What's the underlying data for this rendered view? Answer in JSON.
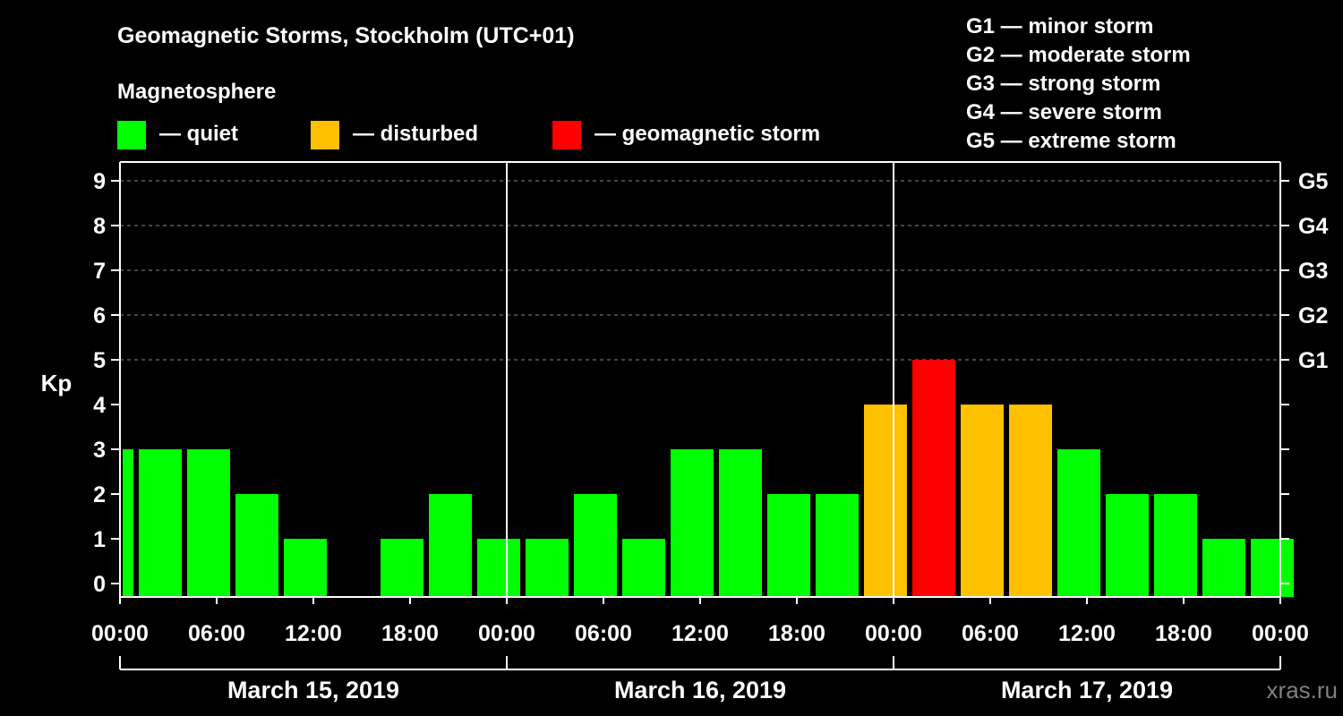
{
  "chart_data": {
    "type": "bar",
    "title": "Geomagnetic Storms, Stockholm (UTC+01)",
    "legend_title": "Magnetosphere",
    "legend": [
      {
        "key": "quiet",
        "label": "— quiet",
        "color": "#00ff00"
      },
      {
        "key": "disturbed",
        "label": "— disturbed",
        "color": "#ffc000"
      },
      {
        "key": "storm",
        "label": "— geomagnetic storm",
        "color": "#ff0000"
      }
    ],
    "storm_scale": [
      "G1 — minor storm",
      "G2 — moderate storm",
      "G3 — strong storm",
      "G4 — severe storm",
      "G5 — extreme storm"
    ],
    "ylabel": "Kp",
    "ylim": [
      0,
      9
    ],
    "yticks": [
      "0",
      "1",
      "2",
      "3",
      "4",
      "5",
      "6",
      "7",
      "8",
      "9"
    ],
    "right_ticks": [
      {
        "kp": 5,
        "label": "G1"
      },
      {
        "kp": 6,
        "label": "G2"
      },
      {
        "kp": 7,
        "label": "G3"
      },
      {
        "kp": 8,
        "label": "G4"
      },
      {
        "kp": 9,
        "label": "G5"
      }
    ],
    "x_tick_labels": [
      "00:00",
      "06:00",
      "12:00",
      "18:00",
      "00:00",
      "06:00",
      "12:00",
      "18:00",
      "00:00",
      "06:00",
      "12:00",
      "18:00",
      "00:00"
    ],
    "days": [
      "March 15, 2019",
      "March 16, 2019",
      "March 17, 2019"
    ],
    "hours_shown": 72,
    "first_bar_start_hour": -2,
    "bar_interval_hours": 3,
    "values": [
      3,
      3,
      3,
      2,
      1,
      0,
      1,
      2,
      1,
      1,
      2,
      1,
      3,
      3,
      2,
      2,
      4,
      5,
      4,
      4,
      3,
      2,
      2,
      1,
      1
    ],
    "categories": [
      "quiet",
      "quiet",
      "quiet",
      "quiet",
      "quiet",
      "quiet",
      "quiet",
      "quiet",
      "quiet",
      "quiet",
      "quiet",
      "quiet",
      "quiet",
      "quiet",
      "quiet",
      "quiet",
      "disturbed",
      "storm",
      "disturbed",
      "disturbed",
      "quiet",
      "quiet",
      "quiet",
      "quiet",
      "quiet"
    ],
    "grid": "dashed at Kp 5-9"
  },
  "watermark": "xras.ru"
}
